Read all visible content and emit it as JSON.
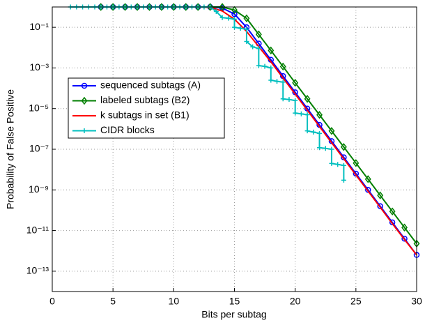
{
  "chart_data": {
    "type": "line",
    "log_y": true,
    "grid": true,
    "legend": "upper left",
    "xlabel": "Bits per subtag",
    "ylabel": "Probability of False Positive",
    "xlim": [
      0,
      30
    ],
    "xticks": [
      0,
      5,
      10,
      15,
      20,
      25,
      30
    ],
    "ylim": [
      1e-14,
      1
    ],
    "yticks": [
      {
        "value": 0.1,
        "label": "10⁻¹"
      },
      {
        "value": 0.001,
        "label": "10⁻³"
      },
      {
        "value": 1e-05,
        "label": "10⁻⁵"
      },
      {
        "value": 1e-07,
        "label": "10⁻⁷"
      },
      {
        "value": 1e-09,
        "label": "10⁻⁹"
      },
      {
        "value": 1e-11,
        "label": "10⁻¹¹"
      },
      {
        "value": 1e-13,
        "label": "10⁻¹³"
      }
    ],
    "series": [
      {
        "name": "sequenced subtags (A)",
        "color": "#0000ff",
        "marker": "circle",
        "x": [
          4,
          5,
          6,
          7,
          8,
          9,
          10,
          11,
          12,
          13,
          14,
          15,
          16,
          17,
          18,
          19,
          20,
          21,
          22,
          23,
          24,
          25,
          26,
          27,
          28,
          29,
          30
        ],
        "values": [
          1,
          1,
          1,
          1,
          1,
          1,
          1,
          1,
          1,
          1,
          0.891,
          0.447,
          0.1,
          0.0158,
          0.00251,
          0.000398,
          6.31e-05,
          1e-05,
          1.58e-06,
          2.51e-07,
          3.98e-08,
          6.31e-09,
          1e-09,
          1.58e-10,
          2.51e-11,
          3.98e-12,
          6.31e-13
        ]
      },
      {
        "name": "labeled subtags (B2)",
        "color": "#007f00",
        "marker": "diamond",
        "x": [
          4,
          5,
          6,
          7,
          8,
          9,
          10,
          11,
          12,
          13,
          14,
          15,
          16,
          17,
          18,
          19,
          20,
          21,
          22,
          23,
          24,
          25,
          26,
          27,
          28,
          29,
          30
        ],
        "values": [
          1,
          1,
          1,
          1,
          1,
          1,
          1,
          1,
          1,
          1,
          1,
          0.708,
          0.275,
          0.0447,
          0.00724,
          0.00117,
          0.000186,
          3.02e-05,
          4.9e-06,
          7.94e-07,
          1.29e-07,
          2.09e-08,
          3.39e-09,
          5.37e-10,
          8.71e-11,
          1.41e-11,
          2.29e-12
        ]
      },
      {
        "name": "k subtags in set (B1)",
        "color": "#ff0000",
        "marker": "none",
        "x": [
          12,
          13,
          14,
          15,
          16,
          17,
          18,
          19,
          20,
          21,
          22,
          23,
          24,
          25,
          26,
          27,
          28,
          29,
          30
        ],
        "values": [
          1,
          0.95,
          0.63,
          0.25,
          0.063,
          0.0112,
          0.002,
          0.00032,
          5.2e-05,
          8.3e-06,
          1.32e-06,
          2.1e-07,
          3.4e-08,
          5.4e-09,
          8.7e-10,
          1.4e-10,
          2.2e-11,
          3.6e-12,
          6.31e-13
        ]
      },
      {
        "name": "CIDR blocks",
        "color": "#00bfbf",
        "marker": "plus",
        "x": [
          1.5,
          2,
          2.5,
          3,
          3.5,
          4,
          4.5,
          5,
          5.5,
          6,
          6.5,
          7,
          7.5,
          8,
          8.5,
          9,
          9.5,
          10,
          10.5,
          11,
          11.5,
          12,
          12.5,
          13,
          13.5,
          14,
          14.5,
          15,
          15,
          15.5,
          16,
          16,
          16.5,
          17,
          17,
          17.5,
          18,
          18,
          18.5,
          19,
          19,
          19.5,
          20,
          20,
          20.5,
          21,
          21,
          21.5,
          22,
          22,
          22.5,
          23,
          23,
          23.5,
          24,
          24
        ],
        "values": [
          1,
          1,
          1,
          1,
          1,
          1,
          1,
          1,
          1,
          1,
          1,
          1,
          1,
          1,
          1,
          1,
          1,
          1,
          1,
          1,
          1,
          1,
          1,
          1,
          0.6,
          0.3,
          0.28,
          0.25,
          0.1,
          0.09,
          0.08,
          0.02,
          0.011,
          0.009,
          0.0013,
          0.0012,
          0.001,
          0.00025,
          0.00022,
          0.0002,
          3e-05,
          2.8e-05,
          2.5e-05,
          6e-06,
          5.5e-06,
          5e-06,
          8e-07,
          7e-07,
          6e-07,
          1.2e-07,
          1.1e-07,
          1e-07,
          2e-08,
          1.8e-08,
          1.6e-08,
          3e-09
        ]
      }
    ]
  }
}
